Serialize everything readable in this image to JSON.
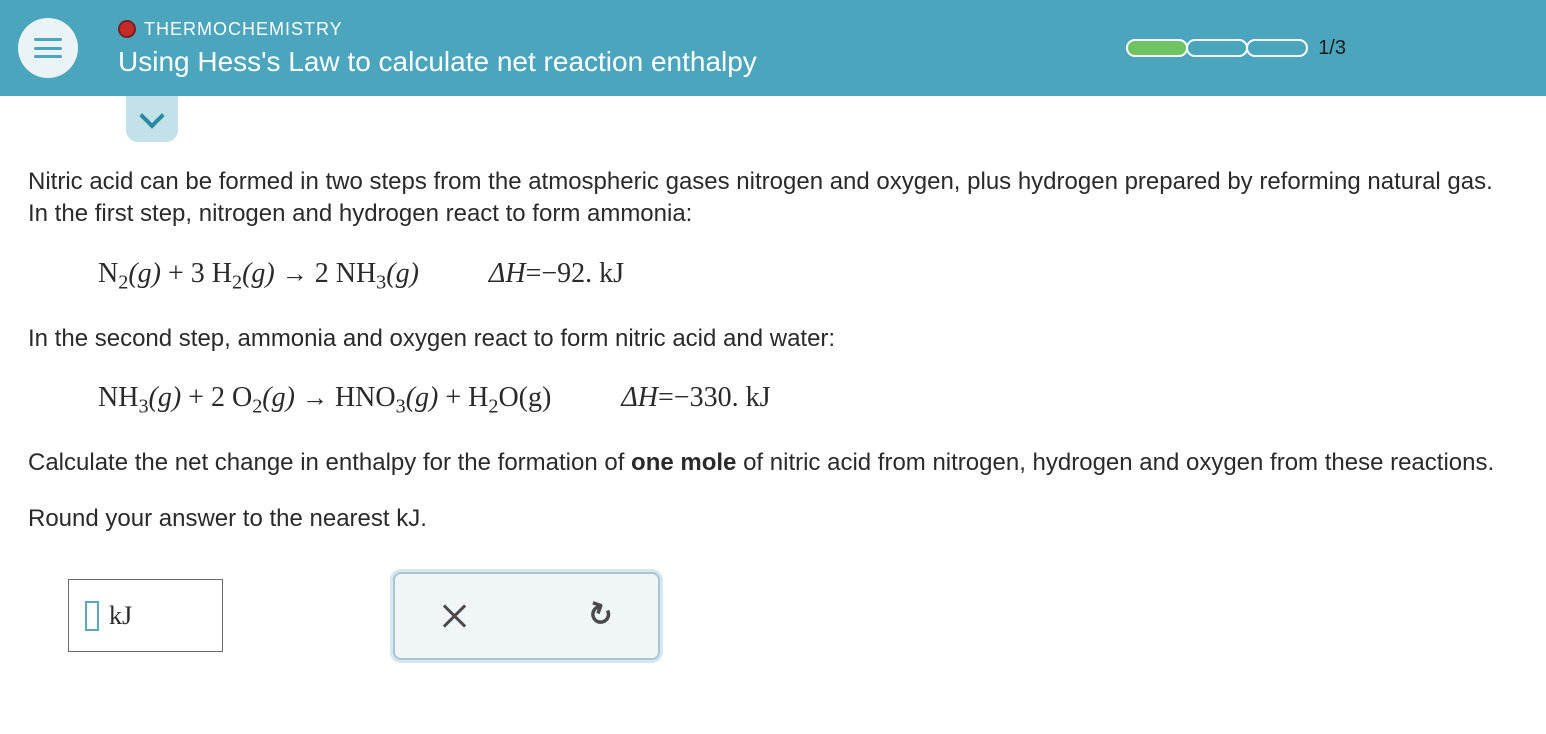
{
  "header": {
    "topic": "THERMOCHEMISTRY",
    "title": "Using Hess's Law to calculate net reaction enthalpy",
    "progress": {
      "filled": 1,
      "total": 3,
      "label": "1/3"
    },
    "accent": "#4ba5bc",
    "record_dot": "#c62a2a"
  },
  "problem": {
    "intro": "Nitric acid can be formed in two steps from the atmospheric gases nitrogen and oxygen, plus hydrogen prepared by reforming natural gas. In the first step, nitrogen and hydrogen react to form ammonia:",
    "eq1": {
      "lhs_1": "N",
      "lhs_1_sub": "2",
      "lhs_1_state": "(g)",
      "plus1": " + 3 H",
      "plus1_sub": "2",
      "plus1_state": "(g)",
      "arrow": "→",
      "rhs_1": " 2 NH",
      "rhs_1_sub": "3",
      "rhs_1_state": "(g)",
      "dH_label": "ΔH=−92. kJ"
    },
    "mid": "In the second step, ammonia and oxygen react to form nitric acid and water:",
    "eq2": {
      "lhs_1": "NH",
      "lhs_1_sub": "3",
      "lhs_1_state": "(g)",
      "plus1": " + 2 O",
      "plus1_sub": "2",
      "plus1_state": "(g)",
      "arrow": "→",
      "rhs_1": " HNO",
      "rhs_1_sub": "3",
      "rhs_1_state": "(g)",
      "plus2": " + H",
      "plus2_sub": "2",
      "plus2_tail": "O(g)",
      "dH_label": "ΔH=−330. kJ"
    },
    "question1": "Calculate the net change in enthalpy for the formation of ",
    "question_bold": "one mole",
    "question2": " of nitric acid from nitrogen, hydrogen and oxygen from these reactions.",
    "round_hint": "Round your answer to the nearest kJ."
  },
  "answer": {
    "unit": "kJ"
  }
}
